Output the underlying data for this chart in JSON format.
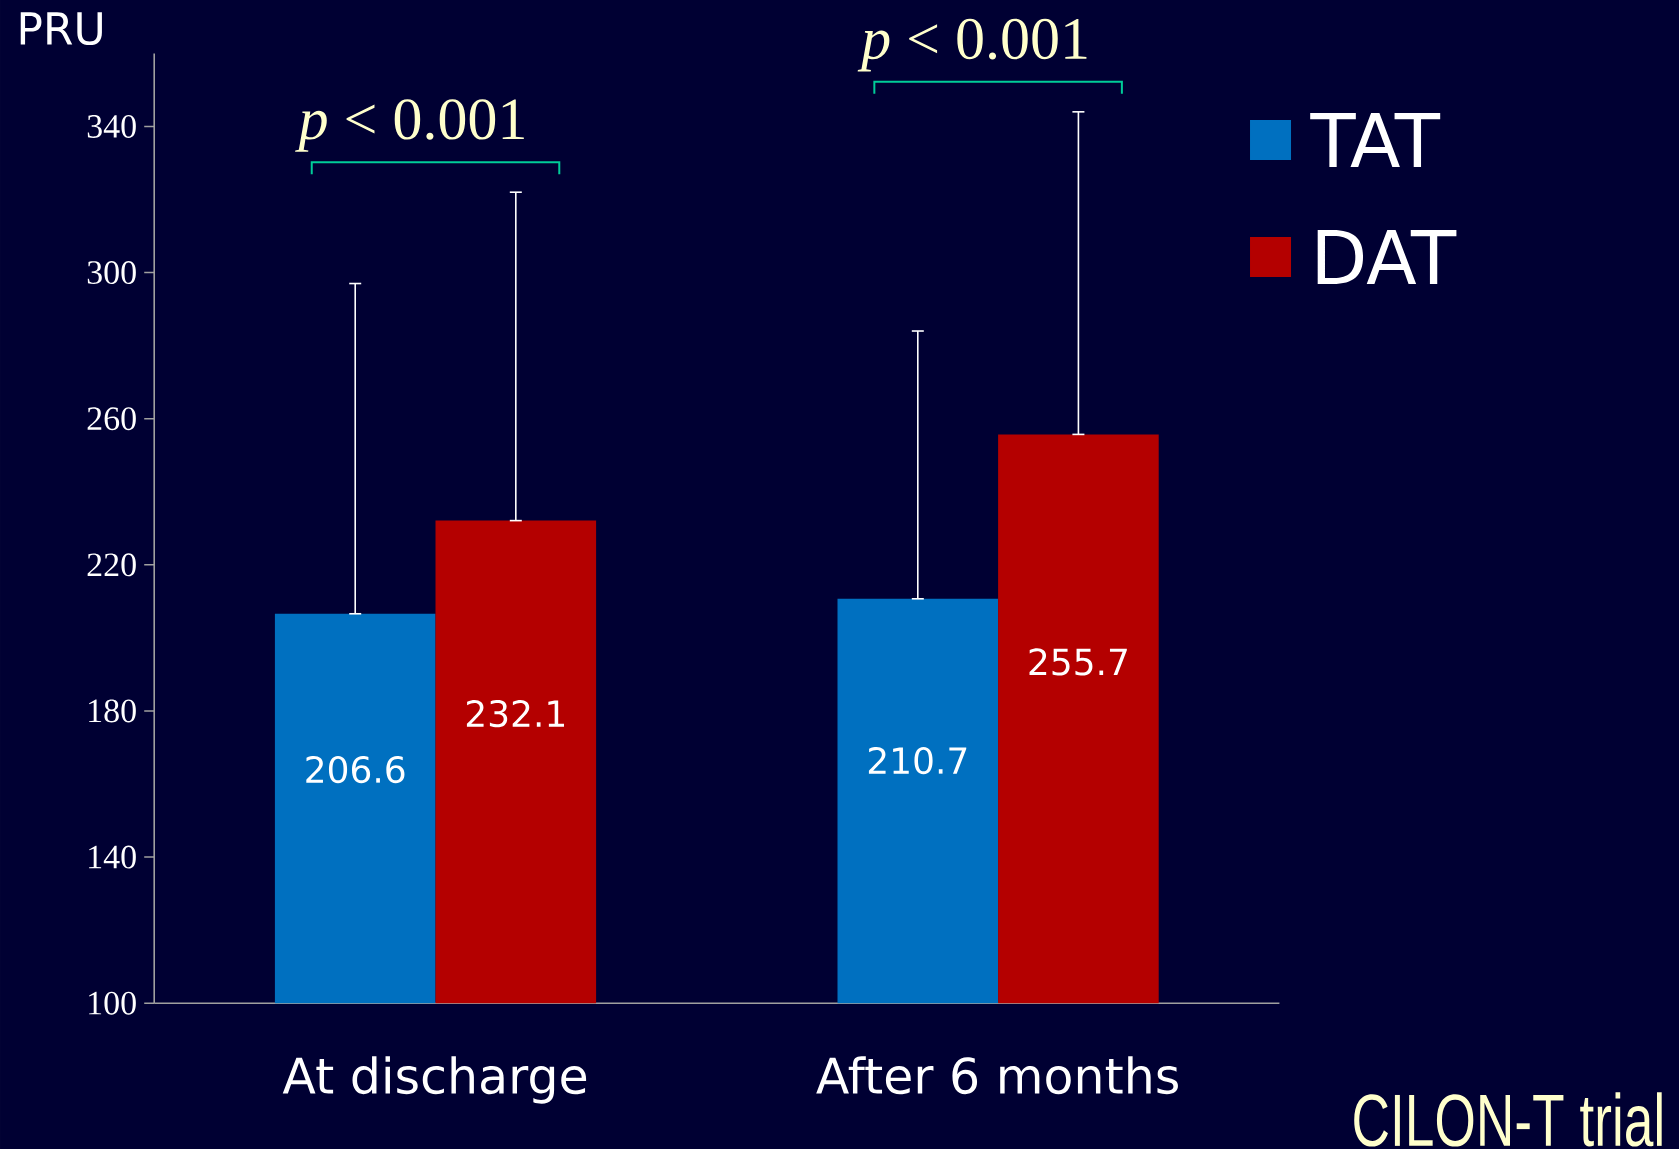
{
  "chart_data": {
    "type": "bar",
    "ylabel": "PRU",
    "categories": [
      "At discharge",
      "After 6 months"
    ],
    "series": [
      {
        "name": "TAT",
        "color": "#0070c0",
        "values": [
          206.6,
          210.7
        ],
        "errors": [
          [
            206.6,
            297
          ],
          [
            210.7,
            284
          ]
        ]
      },
      {
        "name": "DAT",
        "color": "#b40000",
        "values": [
          232.1,
          255.7
        ],
        "errors": [
          [
            232.1,
            322
          ],
          [
            255.7,
            344
          ]
        ]
      }
    ],
    "ylim": [
      100,
      360
    ],
    "yticks": [
      100,
      140,
      180,
      220,
      260,
      300,
      340
    ],
    "data_labels": true,
    "legend": "top right",
    "annotations": [
      "*p* < 0.001",
      "*p* < 0.001",
      "CILON-T trial"
    ]
  }
}
